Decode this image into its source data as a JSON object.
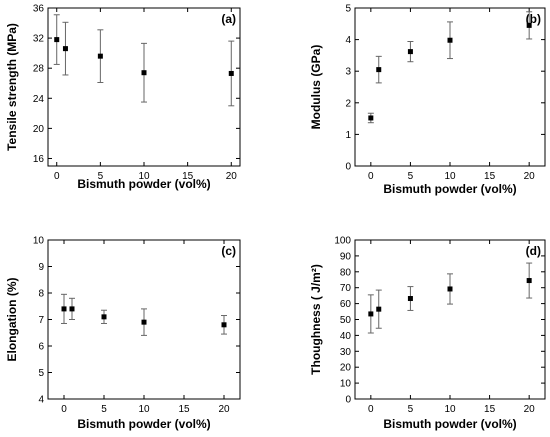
{
  "chart_data": [
    {
      "type": "scatter",
      "panel_label": "(a)",
      "xlabel": "Bismuth powder (vol%)",
      "ylabel": "Tensile strength (MPa)",
      "xlim": [
        -1,
        21
      ],
      "ylim": [
        15,
        36
      ],
      "xticks": [
        "0",
        "5",
        "10",
        "15",
        "20"
      ],
      "yticks": [
        "16",
        "20",
        "24",
        "28",
        "32",
        "36"
      ],
      "points": [
        {
          "x": 0,
          "y": 31.8,
          "err": 3.3
        },
        {
          "x": 1,
          "y": 30.6,
          "err": 3.5
        },
        {
          "x": 5,
          "y": 29.6,
          "err": 3.5
        },
        {
          "x": 10,
          "y": 27.4,
          "err": 3.9
        },
        {
          "x": 20,
          "y": 27.3,
          "err": 4.3
        }
      ]
    },
    {
      "type": "scatter",
      "panel_label": "(b)",
      "xlabel": "Bismuth powder (vol%)",
      "ylabel": "Modulus (GPa)",
      "xlim": [
        -2,
        22
      ],
      "ylim": [
        0,
        5
      ],
      "xticks": [
        "0",
        "5",
        "10",
        "15",
        "20"
      ],
      "yticks": [
        "0",
        "1",
        "2",
        "3",
        "4",
        "5"
      ],
      "points": [
        {
          "x": 0,
          "y": 1.52,
          "err": 0.15
        },
        {
          "x": 1,
          "y": 3.05,
          "err": 0.42
        },
        {
          "x": 5,
          "y": 3.62,
          "err": 0.32
        },
        {
          "x": 10,
          "y": 3.98,
          "err": 0.58
        },
        {
          "x": 20,
          "y": 4.45,
          "err": 0.43
        }
      ]
    },
    {
      "type": "scatter",
      "panel_label": "(c)",
      "xlabel": "Bismuth powder (vol%)",
      "ylabel": "Elongation (%)",
      "xlim": [
        -2,
        22
      ],
      "ylim": [
        4,
        10
      ],
      "xticks": [
        "0",
        "5",
        "10",
        "15",
        "20"
      ],
      "yticks": [
        "4",
        "5",
        "6",
        "7",
        "8",
        "9",
        "10"
      ],
      "points": [
        {
          "x": 0,
          "y": 7.4,
          "err": 0.55
        },
        {
          "x": 1,
          "y": 7.4,
          "err": 0.4
        },
        {
          "x": 5,
          "y": 7.1,
          "err": 0.25
        },
        {
          "x": 10,
          "y": 6.9,
          "err": 0.5
        },
        {
          "x": 20,
          "y": 6.8,
          "err": 0.35
        }
      ]
    },
    {
      "type": "scatter",
      "panel_label": "(d)",
      "xlabel": "Bismuth powder (vol%)",
      "ylabel": "Thoughness ( J/m²)",
      "xlim": [
        -2,
        22
      ],
      "ylim": [
        0,
        100
      ],
      "xticks": [
        "0",
        "5",
        "10",
        "15",
        "20"
      ],
      "yticks": [
        "0",
        "10",
        "20",
        "30",
        "40",
        "50",
        "60",
        "70",
        "80",
        "90",
        "100"
      ],
      "points": [
        {
          "x": 0,
          "y": 53.5,
          "err": 12
        },
        {
          "x": 1,
          "y": 56.5,
          "err": 12
        },
        {
          "x": 5,
          "y": 63.2,
          "err": 7.5
        },
        {
          "x": 10,
          "y": 69.2,
          "err": 9.5
        },
        {
          "x": 20,
          "y": 74.5,
          "err": 11
        }
      ]
    }
  ]
}
